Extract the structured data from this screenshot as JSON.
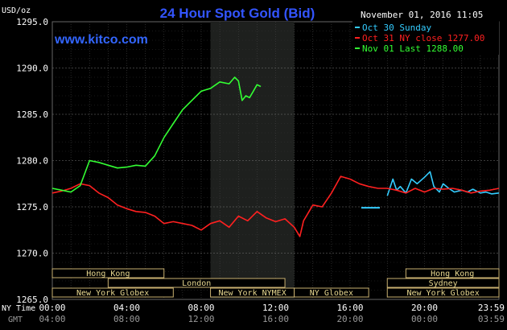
{
  "chart_data": {
    "type": "line",
    "title": "24 Hour Spot Gold (Bid)",
    "unit_label": "USD/oz",
    "watermark": "www.kitco.com",
    "timestamp": "November 01, 2016 11:05",
    "y_ticks": [
      "1295.0",
      "1290.0",
      "1285.0",
      "1280.0",
      "1275.0",
      "1270.0",
      "1265.0"
    ],
    "ylim": [
      1265,
      1295
    ],
    "xlim": [
      0,
      24
    ],
    "grid": true,
    "highlight_hours": [
      8.5,
      13.0
    ],
    "ny_time_label": "NY Time",
    "gmt_label": "GMT",
    "x_ticks_ny": [
      "00:00",
      "04:00",
      "08:00",
      "12:00",
      "16:00",
      "20:00",
      "23:59"
    ],
    "x_ticks_gmt": [
      "04:00",
      "08:00",
      "12:00",
      "16:00",
      "20:00",
      "00:00",
      "03:59"
    ],
    "series": [
      {
        "name": "Oct 30 Sunday",
        "color": "#33ccff",
        "x": [
          18.0,
          18.3,
          18.5,
          18.7,
          19.0,
          19.3,
          19.6,
          20.0,
          20.3,
          20.5,
          20.8,
          21.0,
          21.3,
          21.6,
          22.0,
          22.3,
          22.6,
          23.0,
          23.3,
          23.6,
          24.0
        ],
        "y": [
          1276.2,
          1278.0,
          1276.8,
          1277.2,
          1276.5,
          1278.0,
          1277.5,
          1278.2,
          1278.8,
          1277.2,
          1276.6,
          1277.5,
          1277.0,
          1276.6,
          1276.8,
          1276.6,
          1276.9,
          1276.5,
          1276.6,
          1276.4,
          1276.5
        ]
      },
      {
        "name": "Oct 31 NY close 1277.00",
        "color": "#ff2020",
        "x": [
          0.0,
          0.5,
          1.0,
          1.5,
          2.0,
          2.5,
          3.0,
          3.5,
          4.0,
          4.5,
          5.0,
          5.5,
          6.0,
          6.5,
          7.0,
          7.5,
          8.0,
          8.5,
          9.0,
          9.5,
          10.0,
          10.5,
          11.0,
          11.5,
          12.0,
          12.5,
          13.0,
          13.3,
          13.5,
          14.0,
          14.5,
          15.0,
          15.5,
          16.0,
          16.5,
          17.0,
          17.5,
          18.0,
          18.5,
          19.0,
          19.5,
          20.0,
          20.5,
          21.0,
          21.5,
          22.0,
          22.5,
          23.0,
          23.5,
          24.0
        ],
        "y": [
          1276.5,
          1276.7,
          1277.0,
          1277.5,
          1277.3,
          1276.5,
          1276.0,
          1275.2,
          1274.8,
          1274.5,
          1274.4,
          1274.0,
          1273.2,
          1273.4,
          1273.2,
          1273.0,
          1272.5,
          1273.2,
          1273.5,
          1272.8,
          1274.0,
          1273.5,
          1274.5,
          1273.8,
          1273.4,
          1273.7,
          1272.8,
          1271.8,
          1273.5,
          1275.2,
          1275.0,
          1276.5,
          1278.3,
          1278.0,
          1277.5,
          1277.2,
          1277.0,
          1277.0,
          1276.8,
          1276.5,
          1277.0,
          1276.6,
          1277.0,
          1276.9,
          1277.0,
          1276.8,
          1276.5,
          1276.7,
          1276.8,
          1277.0
        ]
      },
      {
        "name": "Nov 01 Last 1288.00",
        "color": "#33ff33",
        "x": [
          0.0,
          0.5,
          1.0,
          1.5,
          2.0,
          2.5,
          3.0,
          3.5,
          4.0,
          4.5,
          5.0,
          5.5,
          6.0,
          6.5,
          7.0,
          7.5,
          8.0,
          8.5,
          9.0,
          9.5,
          9.8,
          10.0,
          10.2,
          10.4,
          10.6,
          10.8,
          11.0,
          11.2
        ],
        "y": [
          1277.0,
          1276.8,
          1276.6,
          1277.3,
          1280.0,
          1279.8,
          1279.5,
          1279.2,
          1279.3,
          1279.5,
          1279.4,
          1280.5,
          1282.5,
          1284.0,
          1285.5,
          1286.5,
          1287.5,
          1287.8,
          1288.5,
          1288.3,
          1289.0,
          1288.6,
          1286.5,
          1287.0,
          1286.8,
          1287.5,
          1288.2,
          1288.0
        ]
      }
    ],
    "market_rows": [
      [
        {
          "label": "Hong Kong",
          "start": 0.0,
          "end": 6.0
        }
      ],
      [
        {
          "label": "London",
          "start": 3.0,
          "end": 12.5
        }
      ],
      [
        {
          "label": "New York Globex",
          "start": 0.0,
          "end": 6.5
        },
        {
          "label": "New York NYMEX",
          "start": 8.5,
          "end": 13.0
        },
        {
          "label": "NY Globex",
          "start": 13.0,
          "end": 17.0
        }
      ]
    ],
    "market_rows_right": [
      [
        {
          "label": "Hong Kong",
          "start": 19.0,
          "end": 24.0
        }
      ],
      [
        {
          "label": "Sydney",
          "start": 18.0,
          "end": 24.0
        }
      ],
      [
        {
          "label": "New York Globex",
          "start": 18.0,
          "end": 24.0
        }
      ]
    ],
    "legend_placement": "top-right"
  }
}
